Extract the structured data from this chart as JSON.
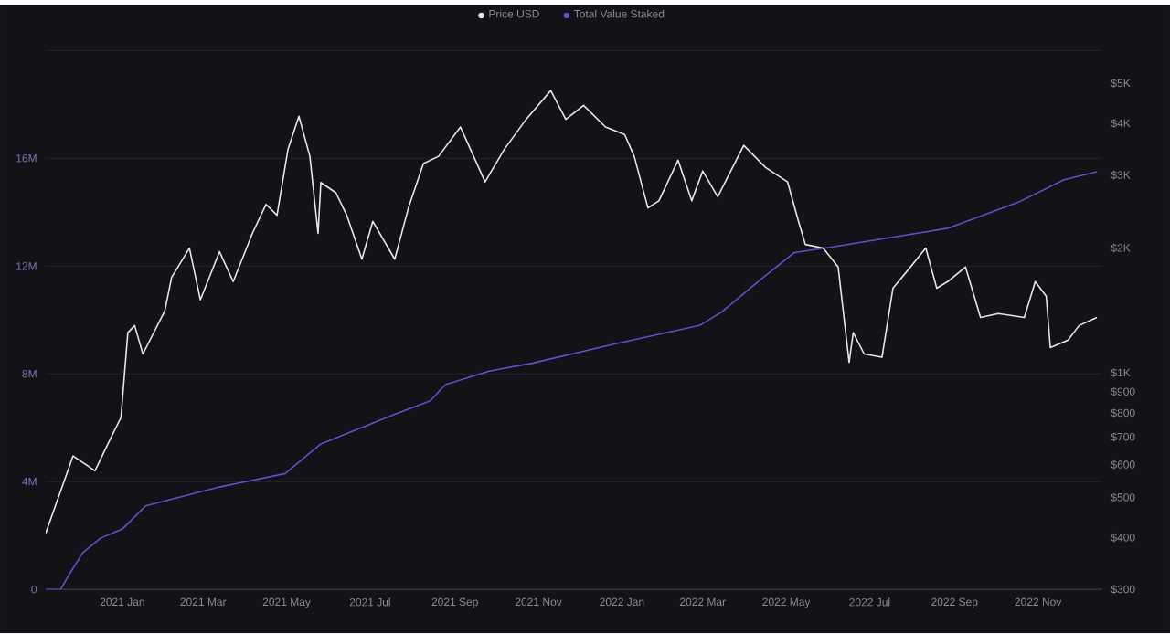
{
  "chart_data": {
    "type": "line",
    "series": [
      {
        "name": "Price USD",
        "color": "#e6e6e6",
        "axis": "y2",
        "x": [
          "2020-11-06",
          "2020-11-26",
          "2020-12-12",
          "2020-12-23",
          "2020-12-31",
          "2021-01-05",
          "2021-01-10",
          "2021-01-16",
          "2021-02-01",
          "2021-02-06",
          "2021-02-19",
          "2021-02-27",
          "2021-03-13",
          "2021-03-23",
          "2021-04-06",
          "2021-04-16",
          "2021-04-24",
          "2021-05-02",
          "2021-05-10",
          "2021-05-18",
          "2021-05-24",
          "2021-05-26",
          "2021-06-06",
          "2021-06-14",
          "2021-06-25",
          "2021-07-03",
          "2021-07-19",
          "2021-07-29",
          "2021-08-09",
          "2021-08-20",
          "2021-09-05",
          "2021-09-23",
          "2021-10-07",
          "2021-10-23",
          "2021-11-10",
          "2021-11-21",
          "2021-12-04",
          "2021-12-20",
          "2022-01-03",
          "2022-01-10",
          "2022-01-20",
          "2022-01-28",
          "2022-02-11",
          "2022-02-21",
          "2022-03-01",
          "2022-03-12",
          "2022-03-31",
          "2022-04-16",
          "2022-05-02",
          "2022-05-10",
          "2022-05-15",
          "2022-05-28",
          "2022-06-08",
          "2022-06-16",
          "2022-06-19",
          "2022-06-27",
          "2022-07-10",
          "2022-07-18",
          "2022-07-29",
          "2022-08-11",
          "2022-08-19",
          "2022-08-27",
          "2022-09-09",
          "2022-09-20",
          "2022-10-03",
          "2022-10-22",
          "2022-10-30",
          "2022-11-07",
          "2022-11-10",
          "2022-11-23",
          "2022-12-01",
          "2022-12-14"
        ],
        "values": [
          410,
          630,
          580,
          690,
          780,
          1250,
          1300,
          1110,
          1410,
          1700,
          2000,
          1500,
          1960,
          1660,
          2170,
          2550,
          2400,
          3460,
          4160,
          3330,
          2170,
          2880,
          2720,
          2400,
          1880,
          2320,
          1880,
          2500,
          3200,
          3330,
          3920,
          2890,
          3460,
          4090,
          4800,
          4090,
          4420,
          3920,
          3760,
          3330,
          2500,
          2600,
          3260,
          2600,
          3070,
          2660,
          3540,
          3130,
          2890,
          2320,
          2040,
          2000,
          1800,
          1060,
          1250,
          1110,
          1090,
          1600,
          1770,
          2000,
          1600,
          1660,
          1800,
          1360,
          1390,
          1360,
          1660,
          1530,
          1150,
          1200,
          1300,
          1360
        ]
      },
      {
        "name": "Total Value Staked",
        "color": "#5c52c9",
        "x": [
          "2020-11-06",
          "2020-11-17",
          "2020-11-23",
          "2020-12-03",
          "2020-12-16",
          "2021-01-01",
          "2021-01-18",
          "2021-03-13",
          "2021-04-30",
          "2021-05-26",
          "2021-07-19",
          "2021-08-14",
          "2021-08-25",
          "2021-09-26",
          "2021-10-28",
          "2021-12-26",
          "2022-02-27",
          "2022-03-15",
          "2022-04-10",
          "2022-05-07",
          "2022-06-03",
          "2022-08-27",
          "2022-10-19",
          "2022-11-20",
          "2022-12-14"
        ],
        "values": [
          0,
          0,
          540000,
          1360000,
          1900000,
          2240000,
          3100000,
          3800000,
          4300000,
          5400000,
          6500000,
          7000000,
          7600000,
          8100000,
          8400000,
          9100000,
          9800000,
          10300000,
          11400000,
          12500000,
          12700000,
          13400000,
          14400000,
          15200000,
          15500000
        ]
      }
    ],
    "xlim": [
      "2020-11-06",
      "2022-12-18"
    ],
    "xticks": [
      {
        "value": "2021-01-01",
        "label": "2021 Jan"
      },
      {
        "value": "2021-03-01",
        "label": "2021 Mar"
      },
      {
        "value": "2021-05-01",
        "label": "2021 May"
      },
      {
        "value": "2021-07-01",
        "label": "2021 Jul"
      },
      {
        "value": "2021-09-01",
        "label": "2021 Sep"
      },
      {
        "value": "2021-11-01",
        "label": "2021 Nov"
      },
      {
        "value": "2022-01-01",
        "label": "2022 Jan"
      },
      {
        "value": "2022-03-01",
        "label": "2022 Mar"
      },
      {
        "value": "2022-05-01",
        "label": "2022 May"
      },
      {
        "value": "2022-07-01",
        "label": "2022 Jul"
      },
      {
        "value": "2022-09-01",
        "label": "2022 Sep"
      },
      {
        "value": "2022-11-01",
        "label": "2022 Nov"
      }
    ],
    "ylim": [
      0,
      20000000
    ],
    "yticks": [
      0,
      {
        "value": 4000000,
        "label": "4M"
      },
      {
        "value": 8000000,
        "label": "8M"
      },
      {
        "value": 12000000,
        "label": "12M"
      },
      {
        "value": 16000000,
        "label": "16M"
      },
      {
        "value": 20000000,
        "label": null
      }
    ],
    "y2lim": [
      300,
      6000
    ],
    "y2ticks": [
      {
        "value": 300,
        "label": "$300"
      },
      {
        "value": 400,
        "label": "$400"
      },
      {
        "value": 500,
        "label": "$500"
      },
      {
        "value": 600,
        "label": "$600"
      },
      {
        "value": 700,
        "label": "$700"
      },
      {
        "value": 800,
        "label": "$800"
      },
      {
        "value": 900,
        "label": "$900"
      },
      {
        "value": 1000,
        "label": "$1K"
      },
      {
        "value": 2000,
        "label": "$2K"
      },
      {
        "value": 3000,
        "label": "$3K"
      },
      {
        "value": 4000,
        "label": "$4K"
      },
      {
        "value": 5000,
        "label": "$5K"
      }
    ],
    "log": "y2",
    "grid": "y",
    "legend": "top"
  }
}
